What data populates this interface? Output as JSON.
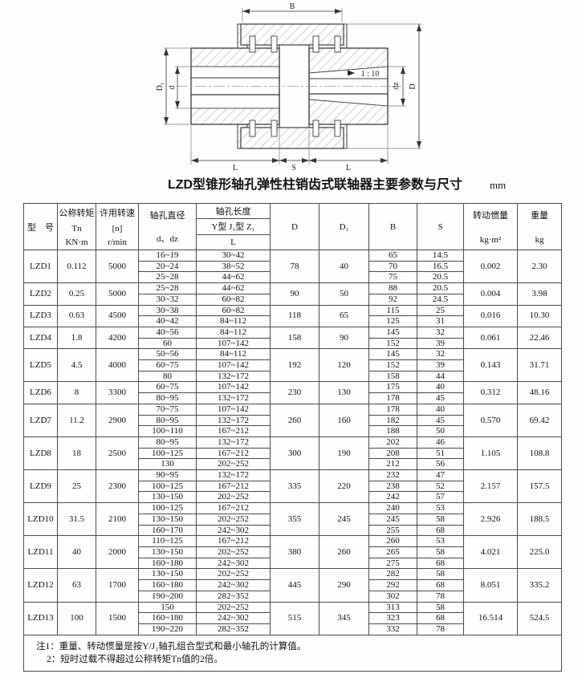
{
  "page": {
    "title": "LZD型锥形轴孔弹性柱销齿式联轴器主要参数与尺寸",
    "unit": "mm"
  },
  "diagram": {
    "labels": {
      "B": "B",
      "D1": "D₁",
      "d": "d",
      "dz": "dz",
      "D": "D",
      "L_left": "L",
      "S": "S",
      "L_right": "L",
      "taper": "1 : 10"
    }
  },
  "table": {
    "header": {
      "model": "型　号",
      "torque": [
        "公称转矩",
        "Tn",
        "KN·m"
      ],
      "speed": [
        "许用转速",
        "[n]",
        "r/min"
      ],
      "bore_diameter": [
        "轴孔直径",
        "d、dz"
      ],
      "bore_length": [
        "轴孔长度",
        "Y型  J₁型  Z₁",
        "L"
      ],
      "D": "D",
      "D1": "D₁",
      "B": "B",
      "S": "S",
      "inertia": [
        "转动惯量",
        "kg·m²"
      ],
      "weight": [
        "重量",
        "kg"
      ]
    },
    "rows": [
      {
        "model": "LZD1",
        "tn": "0.112",
        "n": "5000",
        "D": "78",
        "D1": "40",
        "inertia": "0.002",
        "weight": "2.30",
        "sub": [
          {
            "d": "16~19",
            "L": "30~42",
            "B": "65",
            "S": "14.5"
          },
          {
            "d": "20~24",
            "L": "38~52",
            "B": "70",
            "S": "16.5"
          },
          {
            "d": "25~28",
            "L": "44~62",
            "B": "75",
            "S": "20.5"
          }
        ]
      },
      {
        "model": "LZD2",
        "tn": "0.25",
        "n": "5000",
        "D": "90",
        "D1": "50",
        "inertia": "0.004",
        "weight": "3.98",
        "sub": [
          {
            "d": "25~28",
            "L": "44~62",
            "B": "88",
            "S": "20.5"
          },
          {
            "d": "30~32",
            "L": "60~82",
            "B": "92",
            "S": "24.5"
          }
        ]
      },
      {
        "model": "LZD3",
        "tn": "0.63",
        "n": "4500",
        "D": "118",
        "D1": "65",
        "inertia": "0.016",
        "weight": "10.30",
        "sub": [
          {
            "d": "30~38",
            "L": "60~82",
            "B": "115",
            "S": "25"
          },
          {
            "d": "40~42",
            "L": "84~112",
            "B": "125",
            "S": "31"
          }
        ]
      },
      {
        "model": "LZD4",
        "tn": "1.8",
        "n": "4200",
        "D": "158",
        "D1": "90",
        "inertia": "0.061",
        "weight": "22.46",
        "sub": [
          {
            "d": "40~56",
            "L": "84~112",
            "B": "145",
            "S": "32"
          },
          {
            "d": "60",
            "L": "107~142",
            "B": "152",
            "S": "39"
          }
        ]
      },
      {
        "model": "LZD5",
        "tn": "4.5",
        "n": "4000",
        "D": "192",
        "D1": "120",
        "inertia": "0.143",
        "weight": "31.71",
        "sub": [
          {
            "d": "50~56",
            "L": "84~112",
            "B": "145",
            "S": "32"
          },
          {
            "d": "60~75",
            "L": "107~142",
            "B": "152",
            "S": "39"
          },
          {
            "d": "80",
            "L": "132~172",
            "B": "158",
            "S": "44"
          }
        ]
      },
      {
        "model": "LZD6",
        "tn": "8",
        "n": "3300",
        "D": "230",
        "D1": "130",
        "inertia": "0.312",
        "weight": "48.16",
        "sub": [
          {
            "d": "60~75",
            "L": "107~142",
            "B": "175",
            "S": "40"
          },
          {
            "d": "80~95",
            "L": "132~172",
            "B": "178",
            "S": "45"
          }
        ]
      },
      {
        "model": "LZD7",
        "tn": "11.2",
        "n": "2900",
        "D": "260",
        "D1": "160",
        "inertia": "0.570",
        "weight": "69.42",
        "sub": [
          {
            "d": "70~75",
            "L": "107~142",
            "B": "178",
            "S": "40"
          },
          {
            "d": "80~95",
            "L": "132~172",
            "B": "182",
            "S": "45"
          },
          {
            "d": "100~110",
            "L": "167~212",
            "B": "188",
            "S": "50"
          }
        ]
      },
      {
        "model": "LZD8",
        "tn": "18",
        "n": "2500",
        "D": "300",
        "D1": "190",
        "inertia": "1.105",
        "weight": "108.8",
        "sub": [
          {
            "d": "80~95",
            "L": "132~172",
            "B": "202",
            "S": "46"
          },
          {
            "d": "100~125",
            "L": "167~212",
            "B": "208",
            "S": "51"
          },
          {
            "d": "130",
            "L": "202~252",
            "B": "212",
            "S": "56"
          }
        ]
      },
      {
        "model": "LZD9",
        "tn": "25",
        "n": "2300",
        "D": "335",
        "D1": "220",
        "inertia": "2.157",
        "weight": "157.5",
        "sub": [
          {
            "d": "90~95",
            "L": "132~172",
            "B": "232",
            "S": "47"
          },
          {
            "d": "100~125",
            "L": "167~212",
            "B": "238",
            "S": "52"
          },
          {
            "d": "130~150",
            "L": "202~252",
            "B": "242",
            "S": "57"
          }
        ]
      },
      {
        "model": "LZD10",
        "tn": "31.5",
        "n": "2100",
        "D": "355",
        "D1": "245",
        "inertia": "2.926",
        "weight": "188.5",
        "sub": [
          {
            "d": "100~125",
            "L": "167~212",
            "B": "240",
            "S": "53"
          },
          {
            "d": "130~150",
            "L": "202~252",
            "B": "245",
            "S": "58"
          },
          {
            "d": "160~170",
            "L": "242~302",
            "B": "255",
            "S": "68"
          }
        ]
      },
      {
        "model": "LZD11",
        "tn": "40",
        "n": "2000",
        "D": "380",
        "D1": "260",
        "inertia": "4.021",
        "weight": "225.0",
        "sub": [
          {
            "d": "110~125",
            "L": "167~212",
            "B": "260",
            "S": "53"
          },
          {
            "d": "130~150",
            "L": "202~252",
            "B": "265",
            "S": "58"
          },
          {
            "d": "160~180",
            "L": "242~302",
            "B": "275",
            "S": "68"
          }
        ]
      },
      {
        "model": "LZD12",
        "tn": "63",
        "n": "1700",
        "D": "445",
        "D1": "290",
        "inertia": "8.051",
        "weight": "335.2",
        "sub": [
          {
            "d": "130~150",
            "L": "202~252",
            "B": "282",
            "S": "58"
          },
          {
            "d": "160~180",
            "L": "242~302",
            "B": "292",
            "S": "68"
          },
          {
            "d": "190~200",
            "L": "282~352",
            "B": "302",
            "S": "78"
          }
        ]
      },
      {
        "model": "LZD13",
        "tn": "100",
        "n": "1500",
        "D": "515",
        "D1": "345",
        "inertia": "16.514",
        "weight": "524.5",
        "sub": [
          {
            "d": "150",
            "L": "202~252",
            "B": "313",
            "S": "58"
          },
          {
            "d": "160~180",
            "L": "242~302",
            "B": "323",
            "S": "68"
          },
          {
            "d": "190~220",
            "L": "282~352",
            "B": "332",
            "S": "78"
          }
        ]
      }
    ],
    "notes": [
      "注1：重量、转动惯量是按Y/J₁轴孔组合型式和最小轴孔的计算值。",
      "2：短时过载不得超过公称转矩Tn值的2倍。"
    ]
  }
}
